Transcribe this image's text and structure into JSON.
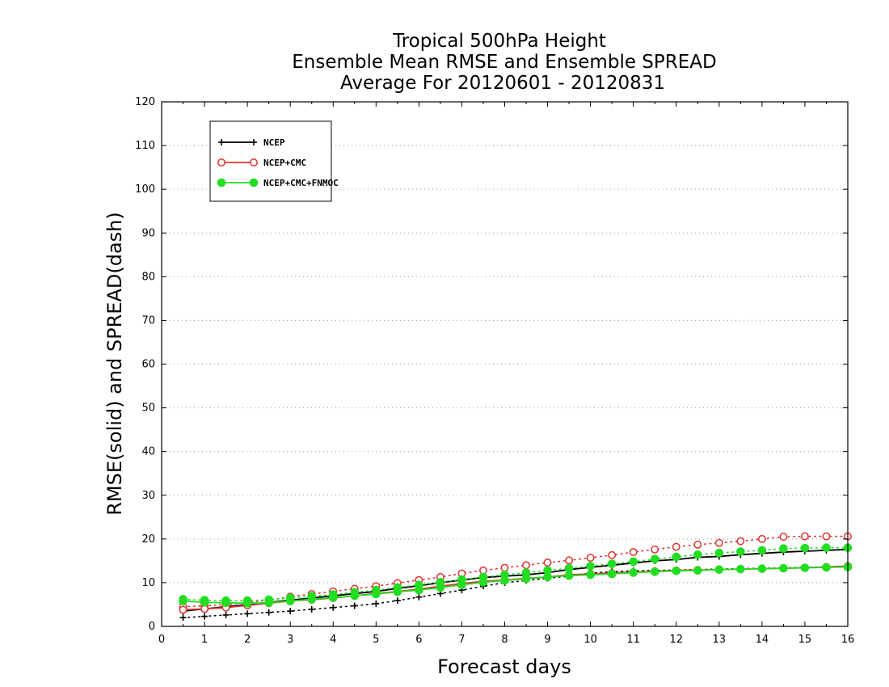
{
  "chart_data": {
    "type": "line",
    "title_lines": [
      "Tropical 500hPa Height",
      "Ensemble Mean RMSE and Ensemble SPREAD",
      "Average For 20120601 - 20120831"
    ],
    "xlabel": "Forecast days",
    "ylabel": "RMSE(solid) and SPREAD(dash)",
    "xlim": [
      0,
      16
    ],
    "ylim": [
      0,
      120
    ],
    "x_ticks": [
      0,
      1,
      2,
      3,
      4,
      5,
      6,
      7,
      8,
      9,
      10,
      11,
      12,
      13,
      14,
      15,
      16
    ],
    "y_ticks": [
      0,
      10,
      20,
      30,
      40,
      50,
      60,
      70,
      80,
      90,
      100,
      110,
      120
    ],
    "grid": "horizontal dotted",
    "legend_position": "top-left",
    "x": [
      0.5,
      1,
      1.5,
      2,
      2.5,
      3,
      3.5,
      4,
      4.5,
      5,
      5.5,
      6,
      6.5,
      7,
      7.5,
      8,
      8.5,
      9,
      9.5,
      10,
      10.5,
      11,
      11.5,
      12,
      12.5,
      13,
      13.5,
      14,
      14.5,
      15,
      15.5,
      16
    ],
    "series": [
      {
        "name": "NCEP",
        "color": "#000000",
        "marker": "plus",
        "rmse": [
          3.5,
          4.0,
          4.5,
          5.0,
          5.5,
          6.0,
          6.5,
          7.0,
          7.5,
          8.0,
          8.7,
          9.3,
          10.0,
          10.6,
          11.2,
          11.5,
          11.8,
          12.3,
          13.0,
          13.5,
          14.0,
          14.5,
          15.0,
          15.3,
          15.8,
          16.0,
          16.4,
          16.7,
          17.0,
          17.2,
          17.4,
          17.6
        ],
        "spread": [
          2.0,
          2.3,
          2.6,
          2.9,
          3.2,
          3.5,
          3.9,
          4.3,
          4.7,
          5.2,
          5.9,
          6.7,
          7.5,
          8.3,
          9.2,
          10.0,
          10.5,
          11.0,
          11.5,
          12.2,
          12.5,
          12.7,
          12.8,
          12.9,
          13.0,
          13.1,
          13.2,
          13.3,
          13.4,
          13.5,
          13.6,
          13.7
        ]
      },
      {
        "name": "NCEP+CMC",
        "color": "#e03030",
        "marker": "open-circle",
        "rmse": [
          3.8,
          4.0,
          4.3,
          4.8,
          5.3,
          5.8,
          6.1,
          6.5,
          7.0,
          7.5,
          8.0,
          8.5,
          9.2,
          9.8,
          10.3,
          10.6,
          11.0,
          11.3,
          11.8,
          12.0,
          12.2,
          12.4,
          12.6,
          12.8,
          12.9,
          13.0,
          13.1,
          13.2,
          13.3,
          13.4,
          13.6,
          13.8
        ],
        "spread": [
          4.5,
          4.7,
          5.0,
          5.5,
          6.0,
          6.8,
          7.4,
          8.0,
          8.6,
          9.2,
          9.9,
          10.6,
          11.3,
          12.1,
          12.8,
          13.4,
          14.0,
          14.6,
          15.1,
          15.7,
          16.3,
          17.0,
          17.6,
          18.2,
          18.7,
          19.1,
          19.5,
          20.0,
          20.5,
          20.6,
          20.6,
          20.6
        ]
      },
      {
        "name": "NCEP+CMC+FNMOC",
        "color": "#22dd22",
        "marker": "filled-circle",
        "rmse": [
          5.8,
          5.5,
          5.4,
          5.3,
          5.4,
          5.8,
          6.2,
          6.6,
          7.0,
          7.4,
          7.9,
          8.3,
          8.9,
          9.5,
          10.1,
          10.5,
          10.9,
          11.3,
          11.6,
          11.8,
          12.0,
          12.3,
          12.5,
          12.7,
          12.8,
          13.0,
          13.1,
          13.2,
          13.3,
          13.4,
          13.5,
          13.6
        ],
        "spread": [
          6.2,
          6.0,
          5.9,
          5.9,
          6.1,
          6.5,
          6.9,
          7.3,
          7.8,
          8.3,
          8.9,
          9.5,
          10.1,
          10.7,
          11.3,
          11.8,
          12.3,
          12.8,
          13.3,
          13.8,
          14.3,
          14.8,
          15.4,
          15.9,
          16.4,
          16.8,
          17.1,
          17.4,
          17.8,
          17.9,
          18.0,
          18.0
        ]
      }
    ]
  }
}
